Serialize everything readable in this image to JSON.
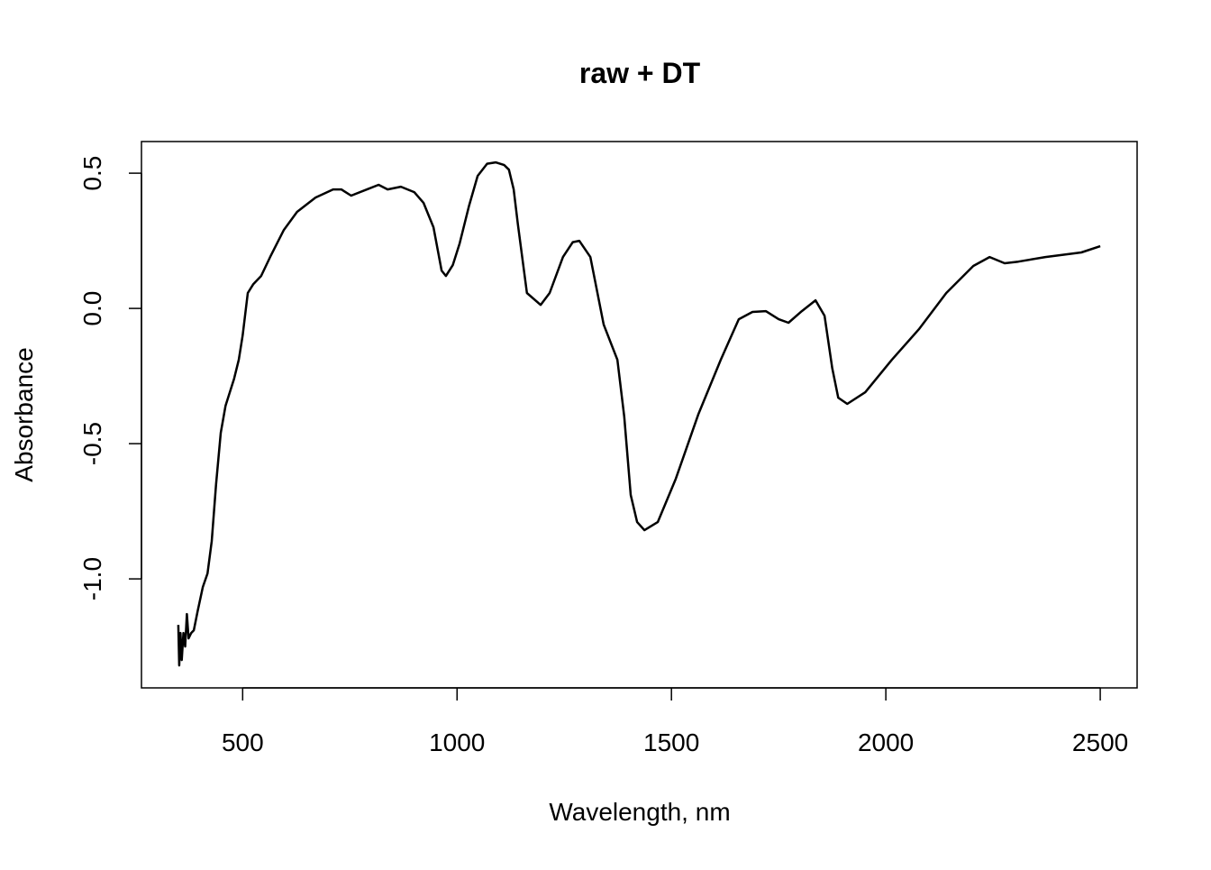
{
  "chart_data": {
    "type": "line",
    "title": "raw + DT",
    "x_label": "Wavelength, nm",
    "y_label": "Absorbance",
    "x": [
      350,
      352,
      355,
      358,
      362,
      366,
      370,
      374,
      380,
      386,
      395,
      407,
      418,
      428,
      438,
      449,
      460,
      480,
      491,
      500,
      512,
      525,
      543,
      564,
      596,
      627,
      670,
      711,
      730,
      753,
      790,
      817,
      838,
      869,
      900,
      922,
      945,
      964,
      974,
      990,
      1006,
      1028,
      1048,
      1070,
      1090,
      1110,
      1121,
      1132,
      1142,
      1163,
      1195,
      1216,
      1247,
      1270,
      1285,
      1311,
      1342,
      1374,
      1390,
      1405,
      1420,
      1437,
      1468,
      1510,
      1563,
      1615,
      1657,
      1689,
      1720,
      1750,
      1773,
      1804,
      1836,
      1857,
      1875,
      1889,
      1910,
      1952,
      2014,
      2077,
      2141,
      2204,
      2242,
      2277,
      2309,
      2372,
      2456,
      2500
    ],
    "y": [
      -1.17,
      -1.32,
      -1.2,
      -1.3,
      -1.2,
      -1.25,
      -1.13,
      -1.22,
      -1.2,
      -1.19,
      -1.12,
      -1.03,
      -0.98,
      -0.86,
      -0.65,
      -0.46,
      -0.36,
      -0.26,
      -0.19,
      -0.1,
      0.057,
      0.09,
      0.12,
      0.19,
      0.29,
      0.357,
      0.41,
      0.44,
      0.44,
      0.417,
      0.44,
      0.457,
      0.44,
      0.45,
      0.43,
      0.39,
      0.3,
      0.14,
      0.12,
      0.16,
      0.24,
      0.38,
      0.49,
      0.535,
      0.54,
      0.53,
      0.513,
      0.44,
      0.31,
      0.057,
      0.013,
      0.057,
      0.19,
      0.245,
      0.25,
      0.19,
      -0.06,
      -0.19,
      -0.4,
      -0.69,
      -0.79,
      -0.82,
      -0.79,
      -0.63,
      -0.39,
      -0.19,
      -0.04,
      -0.013,
      -0.01,
      -0.04,
      -0.053,
      -0.01,
      0.03,
      -0.027,
      -0.22,
      -0.33,
      -0.353,
      -0.31,
      -0.19,
      -0.077,
      0.057,
      0.157,
      0.19,
      0.167,
      0.173,
      0.19,
      0.207,
      0.23
    ],
    "color": "#000000",
    "xlim": [
      264,
      2586
    ],
    "xticks": [
      500,
      1000,
      1500,
      2000,
      2500
    ],
    "ylim": [
      -1.403,
      0.617
    ],
    "yticks": [
      {
        "value": -1,
        "label": "-1.0"
      },
      -0.5,
      {
        "value": 0,
        "label": "0.0"
      },
      0.5
    ]
  }
}
